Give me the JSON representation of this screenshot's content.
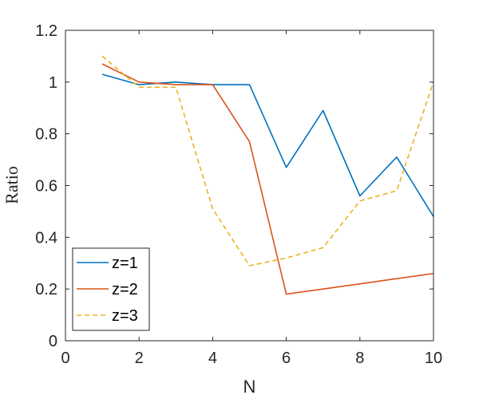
{
  "chart_data": {
    "type": "line",
    "xlabel": "N",
    "ylabel": "Ratio",
    "xlim": [
      0,
      10
    ],
    "ylim": [
      0,
      1.2
    ],
    "x_ticks": [
      "0",
      "2",
      "4",
      "6",
      "8",
      "10"
    ],
    "y_ticks": [
      "0",
      "0.2",
      "0.4",
      "0.6",
      "0.8",
      "1",
      "1.2"
    ],
    "x_tick_values": [
      0,
      2,
      4,
      6,
      8,
      10
    ],
    "y_tick_values": [
      0,
      0.2,
      0.4,
      0.6,
      0.8,
      1.0,
      1.2
    ],
    "grid": false,
    "legend_position": "bottom-left",
    "series": [
      {
        "name": "z=1",
        "color": "#0072BD",
        "line_style": "solid",
        "x": [
          1,
          2,
          3,
          4,
          5,
          6,
          7,
          8,
          9,
          10
        ],
        "y": [
          1.03,
          0.99,
          1.0,
          0.99,
          0.99,
          0.67,
          0.89,
          0.56,
          0.71,
          0.48
        ]
      },
      {
        "name": "z=2",
        "color": "#D95319",
        "line_style": "solid",
        "x": [
          1,
          2,
          3,
          4,
          5,
          6,
          7,
          8,
          9,
          10
        ],
        "y": [
          1.07,
          1.0,
          0.99,
          0.99,
          0.77,
          0.18,
          0.2,
          0.22,
          0.24,
          0.26
        ]
      },
      {
        "name": "z=3",
        "color": "#EDB120",
        "line_style": "dashed",
        "x": [
          1,
          1.5,
          2,
          3,
          4,
          5,
          6,
          7,
          8,
          9,
          10
        ],
        "y": [
          1.1,
          1.04,
          0.98,
          0.98,
          0.51,
          0.29,
          0.32,
          0.36,
          0.54,
          0.58,
          1.0
        ]
      }
    ]
  }
}
